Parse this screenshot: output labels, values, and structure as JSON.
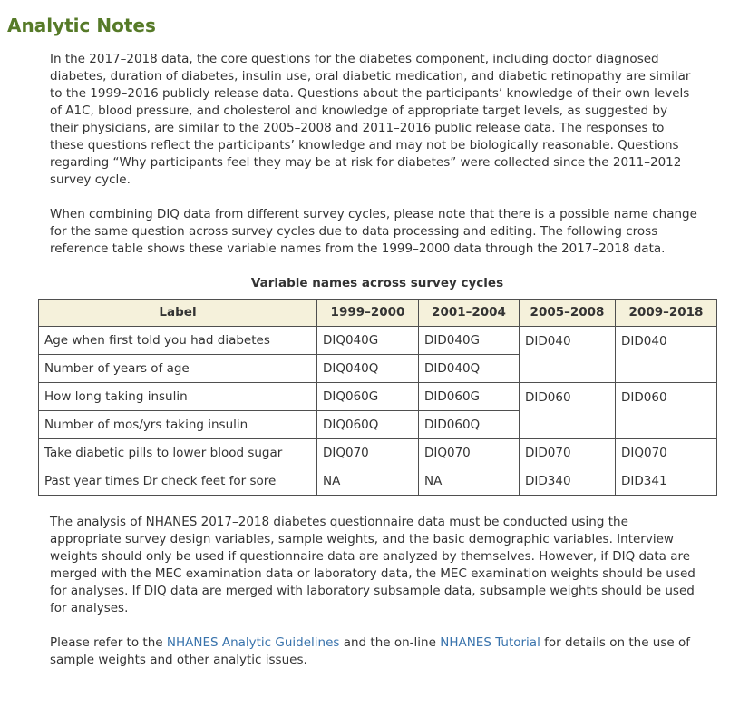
{
  "page": {
    "title": "Analytic Notes"
  },
  "colors": {
    "heading_green": "#567a28",
    "table_header_bg": "#f5f1db",
    "table_border": "#4f4f4f",
    "link_blue": "#3973ac",
    "body_text": "#333333"
  },
  "paragraphs": {
    "p1": "In the 2017–2018 data, the core questions for the diabetes component, including doctor diagnosed diabetes, duration of diabetes, insulin use, oral diabetic medication, and diabetic retinopathy are similar to the 1999–2016 publicly release data. Questions about the participants’ knowledge of their own levels of A1C, blood pressure, and cholesterol and knowledge of appropriate target levels, as suggested by their physicians, are similar to the 2005–2008 and 2011–2016 public release data. The responses to these questions reflect the participants’ knowledge and may not be biologically reasonable. Questions regarding “Why participants feel they may be at risk for diabetes” were collected since the 2011–2012 survey cycle.",
    "p2": "When combining DIQ data from different survey cycles, please note that there is a possible name change for the same question across survey cycles due to data processing and editing. The following cross reference table shows these variable names from the 1999–2000 data through the 2017–2018 data.",
    "p3": "The analysis of NHANES 2017–2018 diabetes questionnaire data must be conducted using the appropriate survey design variables, sample weights, and the basic demographic variables. Interview weights should only be used if questionnaire data are analyzed by themselves. However, if DIQ data are merged with the MEC examination data or laboratory data, the MEC examination weights should be used for analyses. If DIQ data are merged with laboratory subsample data, subsample weights should be used for analyses.",
    "p4_pre": "Please refer to the ",
    "link1": "NHANES Analytic Guidelines",
    "p4_mid": " and the on-line ",
    "link2": "NHANES Tutorial",
    "p4_post": " for details on the use of sample weights and other analytic issues."
  },
  "table": {
    "title": "Variable names across survey cycles",
    "headers": [
      "Label",
      "1999–2000",
      "2001–2004",
      "2005–2008",
      "2009–2018"
    ],
    "rows": [
      {
        "label": "Age when first told you had diabetes",
        "c1": "DIQ040G",
        "c2": "DID040G",
        "c3": "DID040",
        "c4": "DID040"
      },
      {
        "label": "Number of years of age",
        "c1": "DIQ040Q",
        "c2": "DID040Q"
      },
      {
        "label": "How long taking insulin",
        "c1": "DIQ060G",
        "c2": "DID060G",
        "c3": "DID060",
        "c4": "DID060"
      },
      {
        "label": "Number of mos/yrs taking insulin",
        "c1": "DIQ060Q",
        "c2": "DID060Q"
      },
      {
        "label": "Take diabetic pills to lower blood sugar",
        "c1": "DIQ070",
        "c2": "DIQ070",
        "c3": "DID070",
        "c4": "DIQ070"
      },
      {
        "label": "Past year times Dr check feet for sore",
        "c1": "NA",
        "c2": "NA",
        "c3": "DID340",
        "c4": "DID341"
      }
    ]
  }
}
